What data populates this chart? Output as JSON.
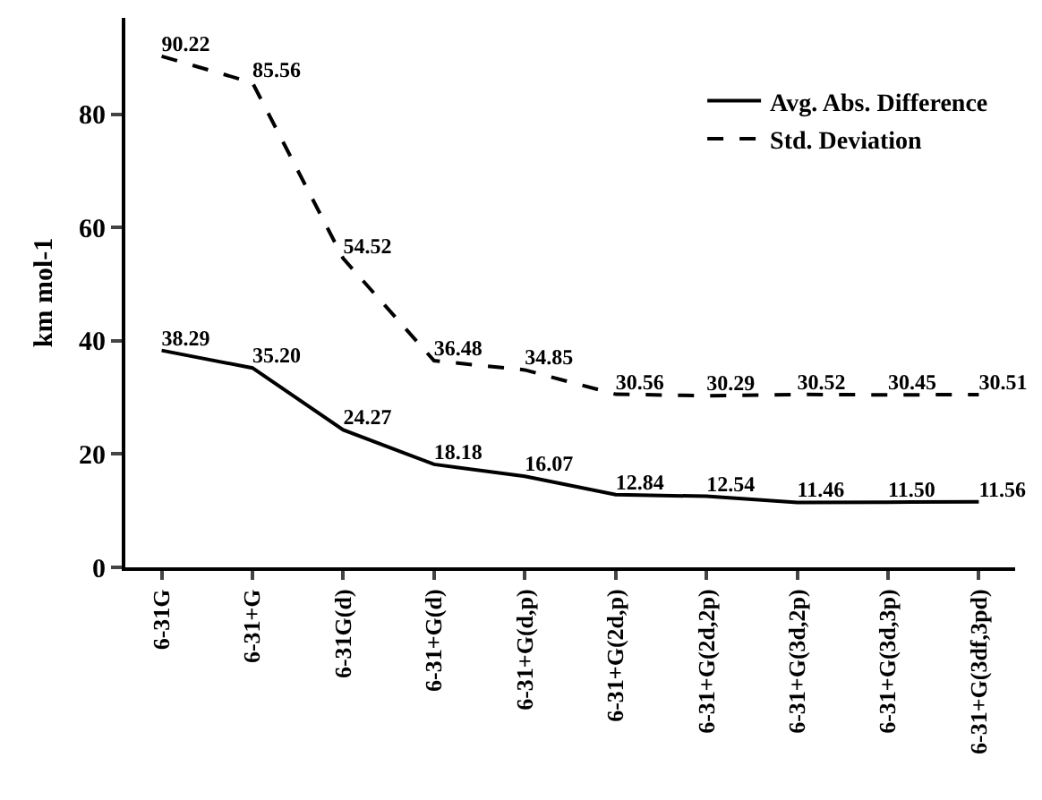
{
  "chart_data": {
    "type": "line",
    "ylabel": "km mol-1",
    "categories": [
      "6-31G",
      "6-31+G",
      "6-31G(d)",
      "6-31+G(d)",
      "6-31+G(d,p)",
      "6-31+G(2d,p)",
      "6-31+G(2d,2p)",
      "6-31+G(3d,2p)",
      "6-31+G(3d,3p)",
      "6-31+G(3df,3pd)"
    ],
    "series": [
      {
        "name": "Avg. Abs. Difference",
        "color": "#000000",
        "line_style": "solid",
        "values": [
          38.29,
          35.2,
          24.27,
          18.18,
          16.07,
          12.84,
          12.54,
          11.46,
          11.5,
          11.56
        ],
        "value_labels": [
          "38.29",
          "35.20",
          "24.27",
          "18.18",
          "16.07",
          "12.84",
          "12.54",
          "11.46",
          "11.50",
          "11.56"
        ]
      },
      {
        "name": "Std. Deviation",
        "color": "#000000",
        "line_style": "dashed",
        "values": [
          90.22,
          85.56,
          54.52,
          36.48,
          34.85,
          30.56,
          30.29,
          30.52,
          30.45,
          30.51
        ],
        "value_labels": [
          "90.22",
          "85.56",
          "54.52",
          "36.48",
          "34.85",
          "30.56",
          "30.29",
          "30.52",
          "30.45",
          "30.51"
        ]
      }
    ],
    "ylim": [
      0,
      97
    ],
    "yticks": [
      0,
      20,
      40,
      60,
      80
    ],
    "legend": "top right",
    "grid": false,
    "marker": "none"
  }
}
